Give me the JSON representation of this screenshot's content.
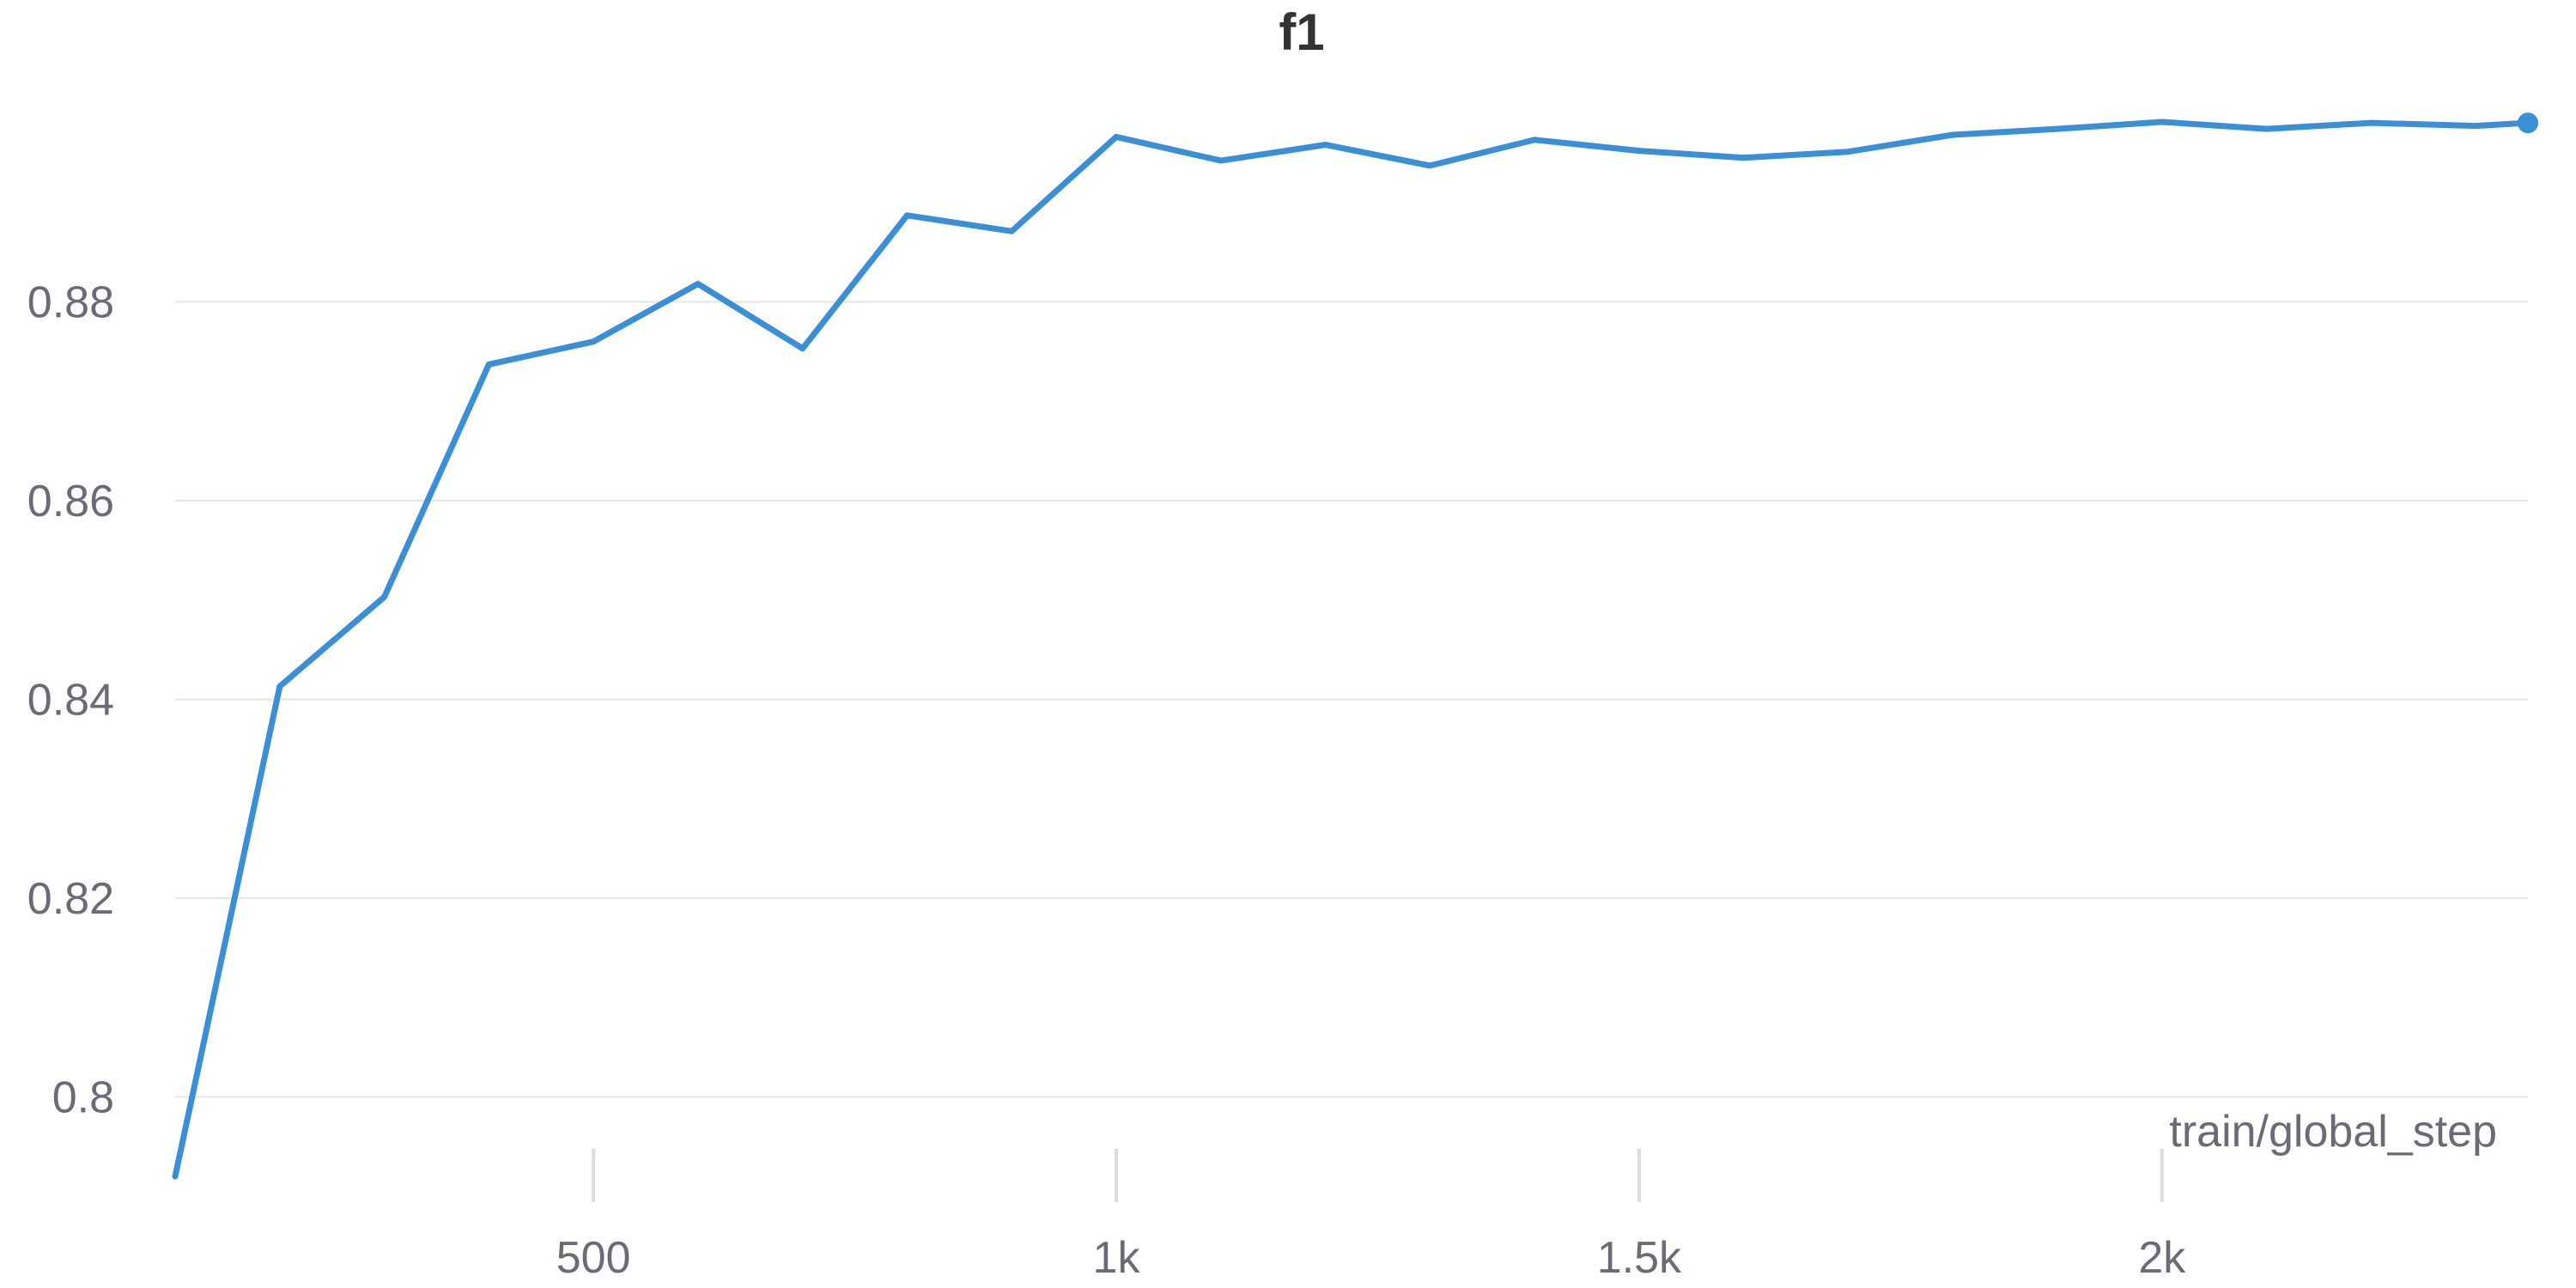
{
  "chart_data": {
    "type": "line",
    "title": "f1",
    "xlabel": "train/global_step",
    "ylabel": "",
    "grid": true,
    "legend": "none",
    "xlim": [
      100,
      2350
    ],
    "ylim": [
      0.792,
      0.9
    ],
    "x_ticks": [
      {
        "value": 500,
        "label": "500"
      },
      {
        "value": 1000,
        "label": "1k"
      },
      {
        "value": 1500,
        "label": "1.5k"
      },
      {
        "value": 2000,
        "label": "2k"
      }
    ],
    "y_ticks": [
      {
        "value": 0.8,
        "label": "0.8"
      },
      {
        "value": 0.82,
        "label": "0.82"
      },
      {
        "value": 0.84,
        "label": "0.84"
      },
      {
        "value": 0.86,
        "label": "0.86"
      },
      {
        "value": 0.88,
        "label": "0.88"
      }
    ],
    "series": [
      {
        "color": "#3a8fd6",
        "x": [
          100,
          200,
          300,
          400,
          500,
          600,
          700,
          800,
          900,
          1000,
          1100,
          1200,
          1300,
          1400,
          1500,
          1600,
          1700,
          1800,
          1900,
          2000,
          2100,
          2200,
          2300,
          2350
        ],
        "y": [
          0.792,
          0.8413,
          0.8503,
          0.8737,
          0.876,
          0.8818,
          0.8753,
          0.8887,
          0.8871,
          0.8966,
          0.8942,
          0.8958,
          0.8937,
          0.8963,
          0.8952,
          0.8945,
          0.8951,
          0.8968,
          0.8974,
          0.8981,
          0.8974,
          0.898,
          0.8977,
          0.898
        ]
      }
    ]
  }
}
